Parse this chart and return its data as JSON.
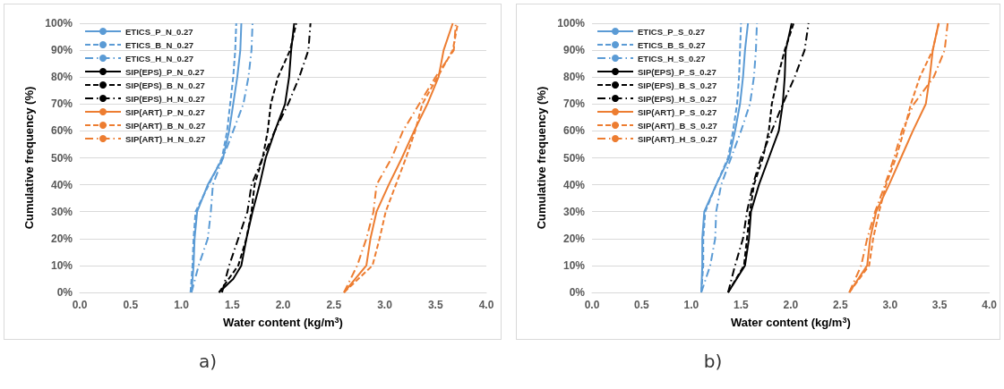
{
  "chart_data": [
    {
      "type": "line",
      "xlabel": "Water content (kg/m$^{3}$)",
      "ylabel": "Cumulative frequency (%)",
      "annotations": [
        "a)"
      ],
      "legend": "top left",
      "grid": "y",
      "marker": "none",
      "xlim": [
        0,
        4
      ],
      "xticks": [
        {
          "value": 0,
          "label": "0.0"
        },
        {
          "value": 0.5,
          "label": "0.5"
        },
        {
          "value": 1,
          "label": "1.0"
        },
        {
          "value": 1.5,
          "label": "1.5"
        },
        {
          "value": 2,
          "label": "2.0"
        },
        {
          "value": 2.5,
          "label": "2.5"
        },
        {
          "value": 3,
          "label": "3.0"
        },
        {
          "value": 3.5,
          "label": "3.5"
        },
        {
          "value": 4,
          "label": "4.0"
        }
      ],
      "ylim": [
        0,
        100
      ],
      "yticks": [
        {
          "value": 0,
          "label": "0%"
        },
        {
          "value": 10,
          "label": "10%"
        },
        {
          "value": 20,
          "label": "20%"
        },
        {
          "value": 30,
          "label": "30%"
        },
        {
          "value": 40,
          "label": "40%"
        },
        {
          "value": 50,
          "label": "50%"
        },
        {
          "value": 60,
          "label": "60%"
        },
        {
          "value": 70,
          "label": "70%"
        },
        {
          "value": 80,
          "label": "80%"
        },
        {
          "value": 90,
          "label": "90%"
        },
        {
          "value": 100,
          "label": "100%"
        }
      ],
      "series": [
        {
          "name": "ETICS_P_N_0.27",
          "color": "#5b9bd5",
          "line_style": "solid",
          "x": [
            1.1,
            1.12,
            1.13,
            1.155,
            1.26,
            1.41,
            1.47,
            1.51,
            1.55,
            1.58,
            1.59
          ],
          "values": [
            0,
            10,
            20,
            30,
            40,
            50,
            60,
            70,
            80,
            90,
            100
          ]
        },
        {
          "name": "ETICS_B_N_0.27",
          "color": "#5b9bd5",
          "line_style": "dashed",
          "x": [
            1.09,
            1.11,
            1.12,
            1.14,
            1.27,
            1.4,
            1.45,
            1.48,
            1.51,
            1.53,
            1.54
          ],
          "values": [
            0,
            10,
            20,
            30,
            40,
            50,
            60,
            70,
            80,
            90,
            100
          ]
        },
        {
          "name": "ETICS_H_N_0.27",
          "color": "#5b9bd5",
          "line_style": "dashdot",
          "x": [
            1.1,
            1.17,
            1.26,
            1.29,
            1.31,
            1.41,
            1.51,
            1.61,
            1.66,
            1.69,
            1.7
          ],
          "values": [
            0,
            10,
            20,
            30,
            40,
            50,
            60,
            70,
            80,
            90,
            100
          ]
        },
        {
          "name": "SIP(EPS)_P_N_0.27",
          "color": "#000000",
          "line_style": "solid",
          "x": [
            1.37,
            1.51,
            1.59,
            1.64,
            1.7,
            1.77,
            1.83,
            1.92,
            2.02,
            2.06,
            2.08,
            2.11
          ],
          "values": [
            0,
            5,
            10,
            20,
            30,
            40,
            50,
            60,
            70,
            80,
            90,
            100
          ]
        },
        {
          "name": "SIP(EPS)_B_N_0.27",
          "color": "#000000",
          "line_style": "dashed",
          "x": [
            1.37,
            1.56,
            1.64,
            1.69,
            1.72,
            1.8,
            1.85,
            1.88,
            1.95,
            2.07,
            2.13
          ],
          "values": [
            0,
            10,
            20,
            30,
            40,
            50,
            60,
            70,
            80,
            90,
            100
          ]
        },
        {
          "name": "SIP(EPS)_H_N_0.27",
          "color": "#000000",
          "line_style": "dashdot",
          "x": [
            1.4,
            1.47,
            1.56,
            1.65,
            1.69,
            1.8,
            1.92,
            2.05,
            2.16,
            2.25,
            2.27
          ],
          "values": [
            0,
            10,
            20,
            30,
            40,
            50,
            60,
            70,
            80,
            90,
            100
          ]
        },
        {
          "name": "SIP(ART)_P_N_0.27",
          "color": "#ed7d31",
          "line_style": "solid",
          "x": [
            2.6,
            2.82,
            2.86,
            2.92,
            3.04,
            3.17,
            3.29,
            3.42,
            3.53,
            3.58,
            3.67
          ],
          "values": [
            0,
            10,
            20,
            30,
            40,
            50,
            60,
            70,
            80,
            90,
            100
          ]
        },
        {
          "name": "SIP(ART)_B_N_0.27",
          "color": "#ed7d31",
          "line_style": "dashed",
          "x": [
            2.6,
            2.88,
            2.95,
            3.01,
            3.11,
            3.21,
            3.3,
            3.37,
            3.52,
            3.67,
            3.72
          ],
          "values": [
            0,
            10,
            20,
            30,
            40,
            50,
            60,
            70,
            80,
            90,
            100
          ]
        },
        {
          "name": "SIP(ART)_H_N_0.27",
          "color": "#ed7d31",
          "line_style": "dashdot",
          "x": [
            2.6,
            2.73,
            2.82,
            2.89,
            2.92,
            3.07,
            3.18,
            3.34,
            3.5,
            3.68,
            3.7
          ],
          "values": [
            0,
            10,
            20,
            30,
            40,
            50,
            60,
            70,
            80,
            90,
            100
          ]
        }
      ]
    },
    {
      "type": "line",
      "xlabel": "Water content (kg/m$^{3}$)",
      "ylabel": "Cumulative frequency (%)",
      "annotations": [
        "b)"
      ],
      "legend": "top left",
      "grid": "y",
      "marker": "none",
      "xlim": [
        0,
        4
      ],
      "xticks": [
        {
          "value": 0,
          "label": "0.0"
        },
        {
          "value": 0.5,
          "label": "0.5"
        },
        {
          "value": 1,
          "label": "1.0"
        },
        {
          "value": 1.5,
          "label": "1.5"
        },
        {
          "value": 2,
          "label": "2.0"
        },
        {
          "value": 2.5,
          "label": "2.5"
        },
        {
          "value": 3,
          "label": "3.0"
        },
        {
          "value": 3.5,
          "label": "3.5"
        },
        {
          "value": 4,
          "label": "4.0"
        }
      ],
      "ylim": [
        0,
        100
      ],
      "yticks": [
        {
          "value": 0,
          "label": "0%"
        },
        {
          "value": 10,
          "label": "10%"
        },
        {
          "value": 20,
          "label": "20%"
        },
        {
          "value": 30,
          "label": "30%"
        },
        {
          "value": 40,
          "label": "40%"
        },
        {
          "value": 50,
          "label": "50%"
        },
        {
          "value": 60,
          "label": "60%"
        },
        {
          "value": 70,
          "label": "70%"
        },
        {
          "value": 80,
          "label": "80%"
        },
        {
          "value": 90,
          "label": "90%"
        },
        {
          "value": 100,
          "label": "100%"
        }
      ],
      "series": [
        {
          "name": "ETICS_P_S_0.27",
          "color": "#5b9bd5",
          "line_style": "solid",
          "x": [
            1.1,
            1.11,
            1.11,
            1.13,
            1.25,
            1.38,
            1.44,
            1.49,
            1.52,
            1.54,
            1.57
          ],
          "values": [
            0,
            10,
            20,
            30,
            40,
            50,
            60,
            70,
            80,
            90,
            100
          ]
        },
        {
          "name": "ETICS_B_S_0.27",
          "color": "#5b9bd5",
          "line_style": "dashed",
          "x": [
            1.1,
            1.12,
            1.12,
            1.14,
            1.25,
            1.37,
            1.42,
            1.46,
            1.48,
            1.49,
            1.5
          ],
          "values": [
            0,
            10,
            20,
            30,
            40,
            50,
            60,
            70,
            80,
            90,
            100
          ]
        },
        {
          "name": "ETICS_H_S_0.27",
          "color": "#5b9bd5",
          "line_style": "dashdot",
          "x": [
            1.1,
            1.19,
            1.24,
            1.25,
            1.3,
            1.4,
            1.5,
            1.59,
            1.63,
            1.65,
            1.66
          ],
          "values": [
            0,
            10,
            20,
            30,
            40,
            50,
            60,
            70,
            80,
            90,
            100
          ]
        },
        {
          "name": "SIP(EPS)_P_S_0.27",
          "color": "#000000",
          "line_style": "solid",
          "x": [
            1.37,
            1.54,
            1.58,
            1.6,
            1.68,
            1.78,
            1.88,
            1.92,
            1.94,
            1.95,
            2.01
          ],
          "values": [
            0,
            10,
            20,
            30,
            40,
            50,
            60,
            70,
            80,
            90,
            100
          ]
        },
        {
          "name": "SIP(EPS)_B_S_0.27",
          "color": "#000000",
          "line_style": "dashed",
          "x": [
            1.37,
            1.53,
            1.56,
            1.59,
            1.63,
            1.72,
            1.78,
            1.81,
            1.87,
            1.94,
            2.03
          ],
          "values": [
            0,
            10,
            20,
            30,
            40,
            50,
            60,
            70,
            80,
            90,
            100
          ]
        },
        {
          "name": "SIP(EPS)_H_S_0.27",
          "color": "#000000",
          "line_style": "dashdot",
          "x": [
            1.37,
            1.44,
            1.52,
            1.56,
            1.62,
            1.7,
            1.81,
            1.92,
            2.04,
            2.14,
            2.18
          ],
          "values": [
            0,
            10,
            20,
            30,
            40,
            50,
            60,
            70,
            80,
            90,
            100
          ]
        },
        {
          "name": "SIP(ART)_P_S_0.27",
          "color": "#ed7d31",
          "line_style": "solid",
          "x": [
            2.59,
            2.77,
            2.8,
            2.86,
            2.99,
            3.11,
            3.23,
            3.36,
            3.4,
            3.43,
            3.49
          ],
          "values": [
            0,
            10,
            20,
            30,
            40,
            50,
            60,
            70,
            80,
            90,
            100
          ]
        },
        {
          "name": "SIP(ART)_B_S_0.27",
          "color": "#ed7d31",
          "line_style": "dashed",
          "x": [
            2.59,
            2.79,
            2.83,
            2.89,
            2.96,
            3.06,
            3.14,
            3.21,
            3.3,
            3.43,
            3.49
          ],
          "values": [
            0,
            10,
            20,
            30,
            40,
            50,
            60,
            70,
            80,
            90,
            100
          ]
        },
        {
          "name": "SIP(ART)_H_S_0.27",
          "color": "#ed7d31",
          "line_style": "dashdot",
          "x": [
            2.59,
            2.71,
            2.77,
            2.85,
            2.95,
            3.04,
            3.12,
            3.24,
            3.44,
            3.55,
            3.58
          ],
          "values": [
            0,
            10,
            20,
            30,
            40,
            50,
            60,
            70,
            80,
            90,
            100
          ]
        }
      ]
    }
  ]
}
